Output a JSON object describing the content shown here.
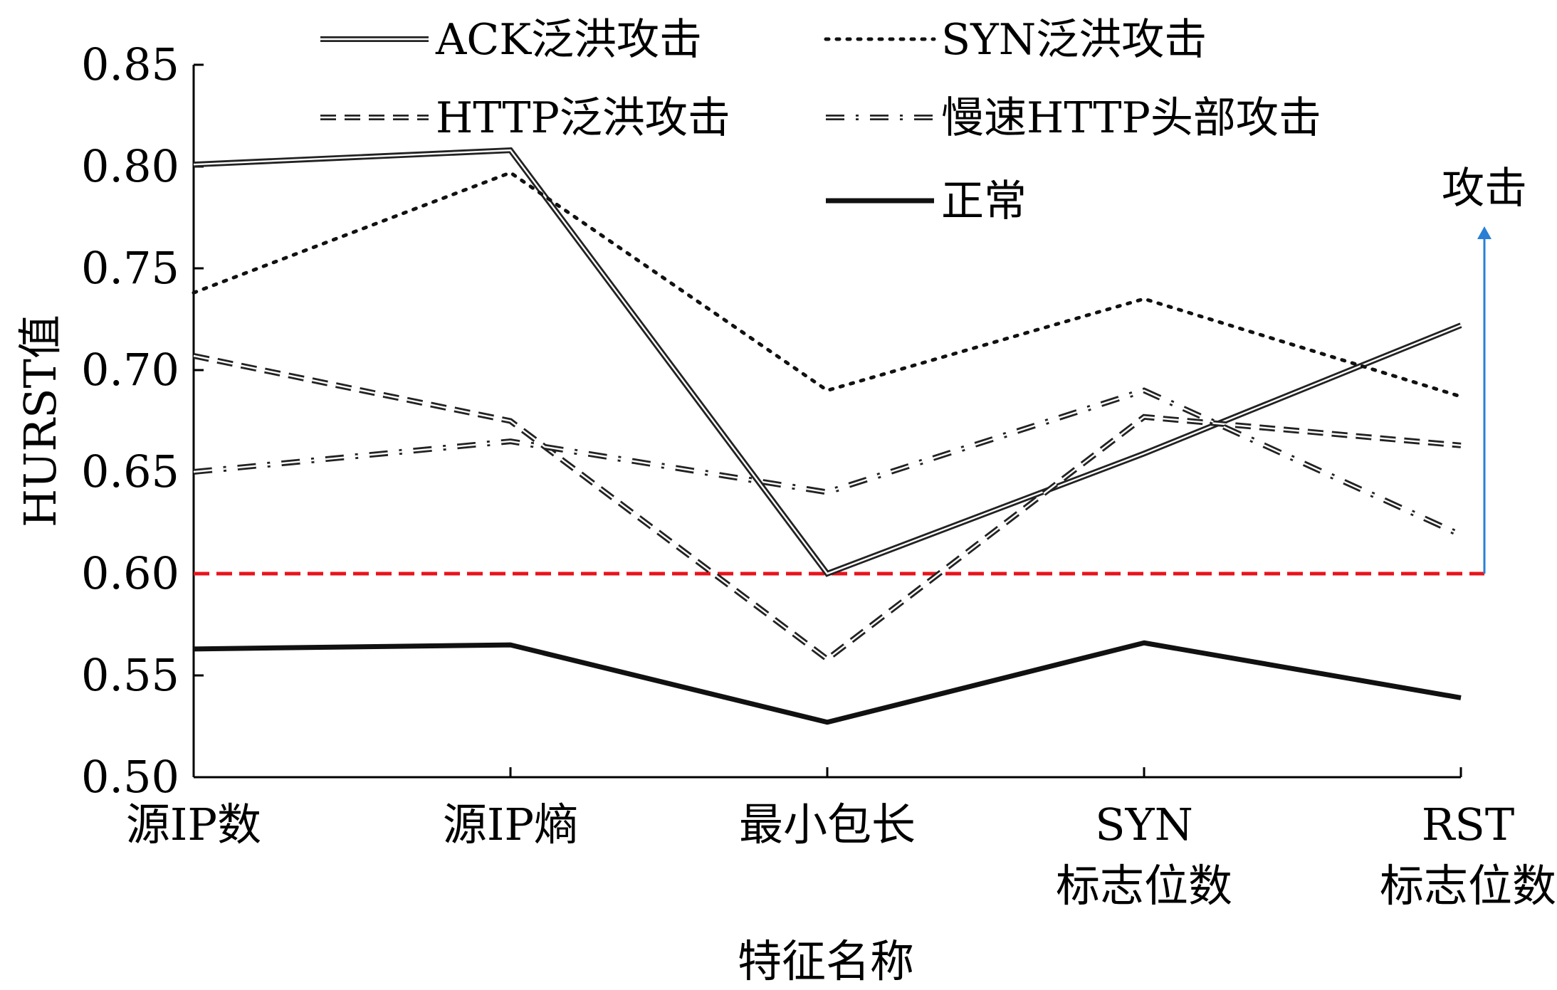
{
  "chart_data": {
    "type": "line",
    "xlabel": "特征名称",
    "ylabel": "HURST值",
    "ylim": [
      0.5,
      0.85
    ],
    "yticks": [
      "0.50",
      "0.55",
      "0.60",
      "0.65",
      "0.70",
      "0.75",
      "0.80",
      "0.85"
    ],
    "categories": [
      [
        "源IP数"
      ],
      [
        "源IP熵"
      ],
      [
        "最小包长"
      ],
      [
        "SYN",
        "标志位数"
      ],
      [
        "RST",
        "标志位数"
      ]
    ],
    "series": [
      {
        "name": "ACK泛洪攻击",
        "style": "double",
        "values": [
          0.801,
          0.808,
          0.6,
          0.659,
          0.722
        ]
      },
      {
        "name": "SYN泛洪攻击",
        "style": "dotted",
        "values": [
          0.738,
          0.797,
          0.69,
          0.735,
          0.687
        ]
      },
      {
        "name": "HTTP泛洪攻击",
        "style": "dashed",
        "values": [
          0.707,
          0.675,
          0.558,
          0.677,
          0.663
        ]
      },
      {
        "name": "慢速HTTP头部攻击",
        "style": "dashdot",
        "values": [
          0.65,
          0.665,
          0.64,
          0.69,
          0.619
        ]
      },
      {
        "name": "正常",
        "style": "solid-bold",
        "values": [
          0.563,
          0.565,
          0.527,
          0.566,
          0.539
        ]
      }
    ],
    "threshold": {
      "value": 0.6,
      "color": "#e8141c"
    },
    "annotation": {
      "text": "攻击",
      "color": "#2a7fd4",
      "from": 0.6,
      "to": 0.78
    },
    "grid": false,
    "legend_position": "top"
  }
}
